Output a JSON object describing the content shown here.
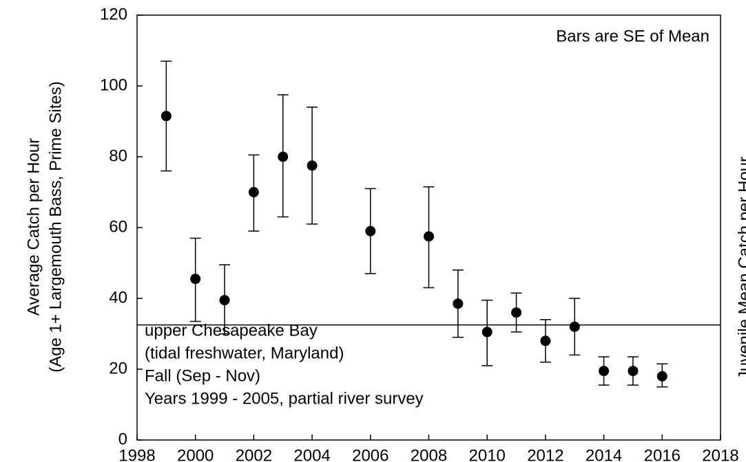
{
  "chart_data": {
    "type": "scatter",
    "y_label": [
      "Average Catch per Hour",
      "(Age 1+ Largemouth Bass, Prime Sites)"
    ],
    "y2_label": "Juvenile Mean Catch per Hour",
    "annotations": [
      "Bars are SE of Mean",
      "upper Chesapeake Bay",
      "(tidal freshwater, Maryland)",
      "Fall (Sep - Nov)",
      "Years 1999 - 2005, partial river survey"
    ],
    "x": [
      1999,
      2000,
      2001,
      2002,
      2003,
      2004,
      2006,
      2008,
      2009,
      2010,
      2011,
      2012,
      2013,
      2014,
      2015,
      2016
    ],
    "values": [
      91.5,
      45.5,
      39.5,
      70,
      80,
      77.5,
      59,
      57.5,
      38.5,
      30.5,
      36,
      28,
      32,
      19.5,
      19.5,
      18
    ],
    "upper": [
      107,
      57,
      49.5,
      80.5,
      97.5,
      94,
      71,
      71.5,
      48,
      39.5,
      41.5,
      34,
      40,
      23.5,
      23.5,
      21.5
    ],
    "lower": [
      76,
      33.5,
      30,
      59,
      63,
      61,
      47,
      43,
      29,
      21,
      30.5,
      22,
      24,
      15.5,
      15.5,
      15
    ],
    "color": "#000000",
    "reference_line": 32.5,
    "xlim": [
      1998,
      2018
    ],
    "xticks": [
      1998,
      2000,
      2002,
      2004,
      2006,
      2008,
      2010,
      2012,
      2014,
      2016,
      2018
    ],
    "ylim": [
      0,
      120
    ],
    "yticks": [
      0,
      20,
      40,
      60,
      80,
      100,
      120
    ]
  }
}
